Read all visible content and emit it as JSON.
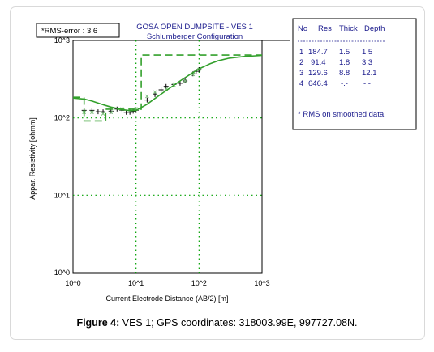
{
  "rms_label": "*RMS-error : 3.6",
  "caption": {
    "prefix": "Figure 4:",
    "text": "VES 1; GPS coordinates: 318003.99E, 997727.08N."
  },
  "colors": {
    "plot": "#000000",
    "curve": "#33a02c",
    "table_text": "#1a1a8c",
    "grid": "#00a000"
  },
  "chart_data": {
    "type": "scatter",
    "title": "GOSA OPEN DUMPSITE - VES 1",
    "subtitle": "Schlumberger Configuration",
    "xlabel": "Current Electrode Distance (AB/2) [m]",
    "ylabel": "Appar. Resistivity [ohmm]",
    "xscale": "log",
    "yscale": "log",
    "xlim": [
      1,
      1000
    ],
    "ylim": [
      1,
      1000
    ],
    "x_ticks": [
      "10^0",
      "10^1",
      "10^2",
      "10^3"
    ],
    "y_ticks": [
      "10^0",
      "10^1",
      "10^2",
      "10^3"
    ],
    "grid": "dotted",
    "series": [
      {
        "name": "",
        "kind": "observed",
        "x": [
          1.5,
          2,
          2.5,
          3,
          4,
          5,
          6,
          7,
          8,
          9,
          10,
          15,
          20,
          25,
          30,
          40,
          50,
          60,
          80,
          90,
          100
        ],
        "y": [
          125,
          125,
          120,
          120,
          122,
          130,
          125,
          118,
          118,
          122,
          125,
          170,
          200,
          230,
          255,
          270,
          280,
          300,
          370,
          400,
          420
        ]
      },
      {
        "name": "",
        "kind": "calculated",
        "x": [
          1.5,
          2,
          3,
          4,
          6,
          8,
          10,
          15,
          20,
          30,
          40,
          60,
          80,
          100
        ],
        "y": [
          118,
          118,
          113,
          118,
          130,
          128,
          130,
          190,
          215,
          235,
          265,
          300,
          365,
          420
        ]
      },
      {
        "name": "",
        "kind": "fitted_curve",
        "x": [
          1,
          1.5,
          2,
          3,
          4,
          6,
          8,
          10,
          15,
          20,
          30,
          50,
          80,
          100,
          150,
          200,
          300,
          500,
          1000
        ],
        "y": [
          180,
          175,
          165,
          148,
          138,
          128,
          124,
          125,
          150,
          178,
          225,
          300,
          385,
          430,
          500,
          545,
          590,
          620,
          640
        ]
      },
      {
        "name": "",
        "kind": "layer_model",
        "x": [
          1,
          1.5,
          1.5,
          3.3,
          3.3,
          12.1,
          12.1,
          1000
        ],
        "y": [
          184.7,
          184.7,
          91.4,
          91.4,
          129.6,
          129.6,
          646.4,
          646.4
        ]
      }
    ]
  },
  "layer_table": {
    "headers": [
      "No",
      "Res",
      "Thick",
      "Depth"
    ],
    "rows": [
      [
        "1",
        "184.7",
        "1.5",
        "1.5"
      ],
      [
        "2",
        "91.4",
        "1.8",
        "3.3"
      ],
      [
        "3",
        "129.6",
        "8.8",
        "12.1"
      ],
      [
        "4",
        "646.4",
        "-.-",
        "-.-"
      ]
    ],
    "note": "* RMS on smoothed data"
  }
}
